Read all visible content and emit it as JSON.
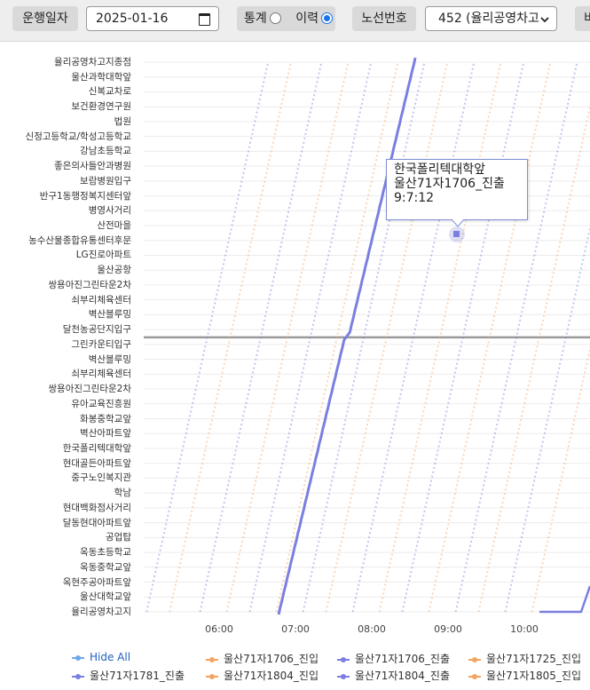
{
  "toolbar": {
    "date_label": "운행일자",
    "date_value": "2025-01-16",
    "stat_label": "통계",
    "history_label": "이력",
    "route_label": "노선번호",
    "route_value": "452 (율리공영차고",
    "extra_label": "비"
  },
  "chart_data": {
    "type": "line",
    "title": "",
    "xlabel": "",
    "ylabel": "",
    "x_ticks": [
      "06:00",
      "07:00",
      "08:00",
      "09:00",
      "10:00"
    ],
    "y_categories_top_to_bottom": [
      "율리공영차고지종점",
      "울산과학대학앞",
      "신복교차로",
      "보건환경연구원",
      "법원",
      "신정고등학교/학성고등학교",
      "강남초등학교",
      "좋은의사들안과병원",
      "보람병원입구",
      "반구1동행정복지센터앞",
      "병영사거리",
      "산전마을",
      "농수산물종합유통센터후문",
      "LG진로아파트",
      "울산공항",
      "쌍용아진그린타운2차",
      "쇠부리체육센터",
      "벽산블루밍",
      "달천농공단지입구",
      "그린카운티입구",
      "벽산블루밍",
      "쇠부리체육센터",
      "쌍용아진그린타운2차",
      "유아교육진흥원",
      "화봉중학교앞",
      "벽산아파트앞",
      "한국폴리텍대학앞",
      "현대골든아파트앞",
      "중구노인복지관",
      "학남",
      "현대백화점사거리",
      "달동현대아파트앞",
      "공업탑",
      "옥동초등학교",
      "옥동중학교앞",
      "옥현주공아파트앞",
      "울산대학교앞",
      "율리공영차고지"
    ],
    "turnaround_stop": "그린카운티입구",
    "highlighted_series": "울산71자1706_진출",
    "series": [
      {
        "name": "울산71자1706_진입",
        "color": "#f4a460"
      },
      {
        "name": "울산71자1706_진출",
        "color": "#7b7fe0"
      },
      {
        "name": "울산71자1725_진입",
        "color": "#f4a460"
      },
      {
        "name": "울산71자1781_진출",
        "color": "#7b7fe0"
      },
      {
        "name": "울산71자1804_진입",
        "color": "#f4a460"
      },
      {
        "name": "울산71자1804_진출",
        "color": "#7b7fe0"
      },
      {
        "name": "울산71자1805_진입",
        "color": "#f4a460"
      }
    ],
    "tooltip": {
      "stop": "한국폴리텍대학앞",
      "series": "울산71자1706_진출",
      "time": "9:7:12"
    }
  },
  "legend": {
    "hide_all": "Hide All",
    "items": [
      "울산71자1706_진입",
      "울산71자1706_진출",
      "울산71자1725_진입",
      "울산71자1781_진출",
      "울산71자1804_진입",
      "울산71자1804_진출",
      "울산71자1805_진입"
    ]
  },
  "colors": {
    "in": "#f4a460",
    "out": "#7b7fe0",
    "hide_all": "#6fa8e8"
  }
}
